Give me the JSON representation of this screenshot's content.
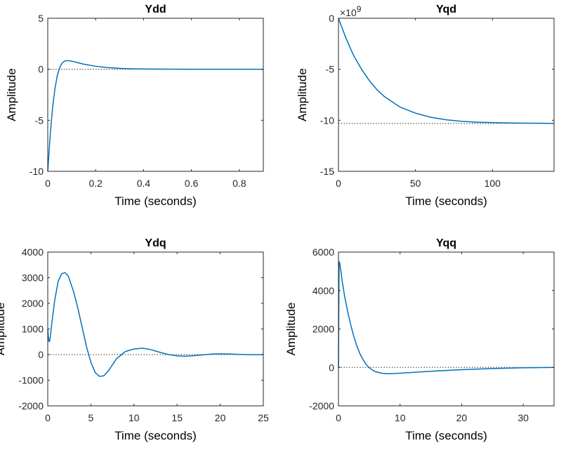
{
  "figure": {
    "line_color": "#0072BD",
    "axes_color": "#262626",
    "reference_line_style": "dotted black at steady-state value"
  },
  "chart_data": [
    {
      "id": "ydd",
      "type": "line",
      "title": "Ydd",
      "xlabel": "Time (seconds)",
      "ylabel": "Amplitude",
      "xlim": [
        0,
        0.9
      ],
      "ylim": [
        -10,
        5
      ],
      "xticks": [
        0,
        0.2,
        0.4,
        0.6,
        0.8
      ],
      "xtick_labels": [
        "0",
        "0.2",
        "0.4",
        "0.6",
        "0.8"
      ],
      "yticks": [
        -10,
        -5,
        0,
        5
      ],
      "ytick_labels": [
        "-10",
        "-5",
        "0",
        "5"
      ],
      "exponent_label": "",
      "reference_y": 0,
      "series": [
        {
          "x": [
            0,
            0.01,
            0.02,
            0.03,
            0.04,
            0.05,
            0.06,
            0.07,
            0.08,
            0.1,
            0.12,
            0.15,
            0.2,
            0.25,
            0.3,
            0.35,
            0.4,
            0.5,
            0.6,
            0.7,
            0.8,
            0.9
          ],
          "y": [
            -10,
            -6.5,
            -3.8,
            -1.9,
            -0.6,
            0.2,
            0.6,
            0.8,
            0.85,
            0.8,
            0.68,
            0.5,
            0.3,
            0.17,
            0.09,
            0.05,
            0.03,
            0.01,
            0.005,
            0.002,
            0.001,
            0
          ]
        }
      ]
    },
    {
      "id": "yqd",
      "type": "line",
      "title": "Yqd",
      "xlabel": "Time (seconds)",
      "ylabel": "Amplitude",
      "xlim": [
        0,
        140
      ],
      "ylim": [
        -15,
        0
      ],
      "xticks": [
        0,
        50,
        100
      ],
      "xtick_labels": [
        "0",
        "50",
        "100"
      ],
      "yticks": [
        -15,
        -10,
        -5,
        0
      ],
      "ytick_labels": [
        "-15",
        "-10",
        "-5",
        "0"
      ],
      "exponent_label": "×10",
      "exponent_power": "9",
      "reference_y": -10.3,
      "series": [
        {
          "x": [
            0,
            5,
            10,
            15,
            20,
            25,
            30,
            40,
            50,
            60,
            70,
            80,
            90,
            100,
            110,
            120,
            130,
            140
          ],
          "y": [
            0,
            -2.0,
            -3.7,
            -5.0,
            -6.1,
            -7.0,
            -7.7,
            -8.7,
            -9.3,
            -9.7,
            -9.95,
            -10.1,
            -10.18,
            -10.23,
            -10.26,
            -10.28,
            -10.29,
            -10.3
          ]
        }
      ]
    },
    {
      "id": "ydq",
      "type": "line",
      "title": "Ydq",
      "xlabel": "Time (seconds)",
      "ylabel": "Amplitude",
      "xlim": [
        0,
        25
      ],
      "ylim": [
        -2000,
        4000
      ],
      "xticks": [
        0,
        5,
        10,
        15,
        20,
        25
      ],
      "xtick_labels": [
        "0",
        "5",
        "10",
        "15",
        "20",
        "25"
      ],
      "yticks": [
        -2000,
        -1000,
        0,
        1000,
        2000,
        3000,
        4000
      ],
      "ytick_labels": [
        "-2000",
        "-1000",
        "0",
        "1000",
        "2000",
        "3000",
        "4000"
      ],
      "exponent_label": "",
      "reference_y": 0,
      "series": [
        {
          "x": [
            0,
            0.1,
            0.2,
            0.3,
            0.5,
            0.8,
            1.2,
            1.6,
            2.0,
            2.4,
            3.0,
            3.5,
            4.0,
            4.5,
            5.0,
            5.5,
            6.0,
            6.5,
            7.0,
            7.5,
            8.0,
            9.0,
            10.0,
            11.0,
            12.0,
            13.0,
            14.0,
            15.0,
            16.0,
            17.0,
            18.0,
            19.0,
            20.0,
            21.0,
            22.0,
            23.0,
            24.0,
            25.0
          ],
          "y": [
            1000,
            550,
            500,
            700,
            1300,
            2100,
            2850,
            3150,
            3200,
            3050,
            2450,
            1800,
            1050,
            300,
            -300,
            -700,
            -850,
            -830,
            -650,
            -400,
            -150,
            120,
            220,
            250,
            190,
            90,
            0,
            -50,
            -60,
            -40,
            -10,
            20,
            30,
            25,
            10,
            0,
            -5,
            0
          ]
        }
      ]
    },
    {
      "id": "yqq",
      "type": "line",
      "title": "Yqq",
      "xlabel": "Time (seconds)",
      "ylabel": "Amplitude",
      "xlim": [
        0,
        35
      ],
      "ylim": [
        -2000,
        6000
      ],
      "xticks": [
        0,
        10,
        20,
        30
      ],
      "xtick_labels": [
        "0",
        "10",
        "20",
        "30"
      ],
      "yticks": [
        -2000,
        0,
        2000,
        4000,
        6000
      ],
      "ytick_labels": [
        "-2000",
        "0",
        "2000",
        "4000",
        "6000"
      ],
      "exponent_label": "",
      "reference_y": 0,
      "series": [
        {
          "x": [
            0,
            0.1,
            0.2,
            0.4,
            0.6,
            1.0,
            1.5,
            2.0,
            2.5,
            3.0,
            3.5,
            4.0,
            4.5,
            5.0,
            5.5,
            6.0,
            7.0,
            8.0,
            9.0,
            10.0,
            12.0,
            15.0,
            18.0,
            20.0,
            25.0,
            30.0,
            35.0
          ],
          "y": [
            0,
            5500,
            5450,
            5000,
            4500,
            3700,
            2900,
            2200,
            1600,
            1100,
            700,
            400,
            150,
            -20,
            -130,
            -220,
            -300,
            -330,
            -320,
            -300,
            -260,
            -200,
            -150,
            -120,
            -60,
            -20,
            0
          ]
        }
      ]
    }
  ]
}
